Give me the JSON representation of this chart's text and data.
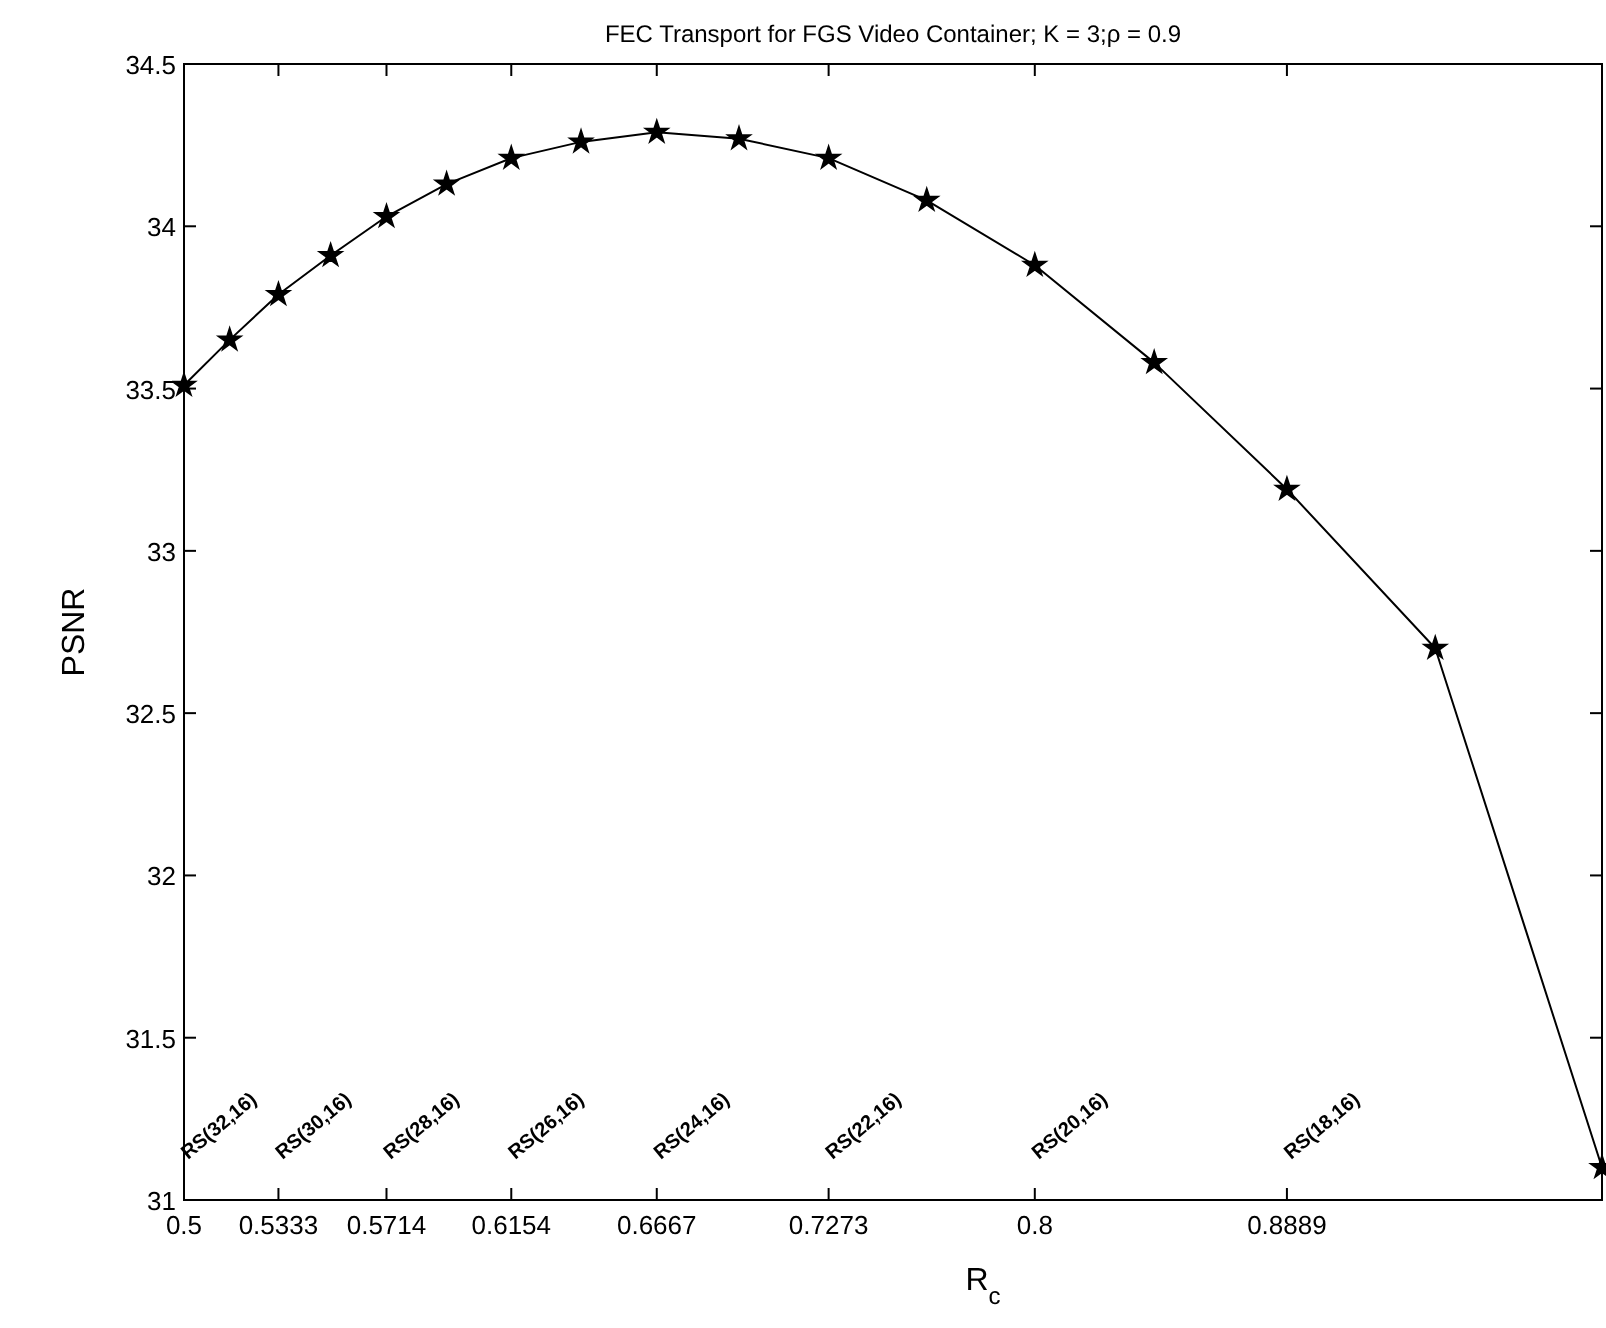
{
  "chart_data": {
    "type": "line",
    "title": "FEC Transport for FGS Video Container; K = 3;ρ = 0.9",
    "xlabel": "R$_{c}$",
    "ylabel": "PSNR",
    "x": [
      0.5,
      0.5161,
      0.5333,
      0.5517,
      0.5714,
      0.5926,
      0.6154,
      0.64,
      0.6667,
      0.6957,
      0.7273,
      0.7619,
      0.8,
      0.8421,
      0.8889,
      0.9412,
      1.0
    ],
    "series": [
      {
        "color": "#000000",
        "values": [
          33.51,
          33.65,
          33.79,
          33.91,
          34.03,
          34.13,
          34.21,
          34.26,
          34.29,
          34.27,
          34.21,
          34.08,
          33.88,
          33.58,
          33.19,
          32.7,
          31.1
        ],
        "marker": "star"
      }
    ],
    "xlim": [
      0.5,
      1.0
    ],
    "ylim": [
      31,
      34.5
    ],
    "xticks": [
      0.5,
      0.5333,
      0.5714,
      0.6154,
      0.6667,
      0.7273,
      0.8,
      0.8889
    ],
    "yticks": [
      31,
      31.5,
      32,
      32.5,
      33,
      33.5,
      34,
      34.5
    ],
    "grid": false,
    "line_style": "solid",
    "annotations": [
      "RS(32,16)",
      "RS(30,16)",
      "RS(28,16)",
      "RS(26,16)",
      "RS(24,16)",
      "RS(22,16)",
      "RS(20,16)",
      "RS(18,16)"
    ]
  }
}
